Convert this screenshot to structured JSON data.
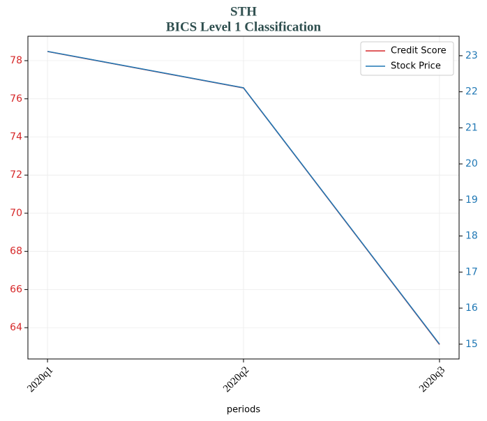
{
  "chart_data": {
    "type": "line",
    "title": "STH",
    "subtitle": "BICS Level 1 Classification",
    "x_label": "periods",
    "categories": [
      "2020q1",
      "2020q2",
      "2020q3"
    ],
    "series": [
      {
        "name": "Credit Score",
        "color": "#d62728",
        "values": [
          78.48,
          76.57,
          63.12
        ]
      },
      {
        "name": "Stock Price",
        "color": "#1f77b4",
        "axis": "y2",
        "values": [
          23.12,
          22.11,
          15.0
        ]
      }
    ],
    "ylim": [
      62.36,
      79.28
    ],
    "yticks": [
      64,
      66,
      68,
      70,
      72,
      74,
      76,
      78
    ],
    "y2lim": [
      14.59,
      23.54
    ],
    "y2ticks": [
      15,
      16,
      17,
      18,
      19,
      20,
      21,
      22,
      23
    ],
    "grid": true,
    "legend": "upper right",
    "ytick_color": "#d62728",
    "y2tick_color": "#1f77b4"
  }
}
